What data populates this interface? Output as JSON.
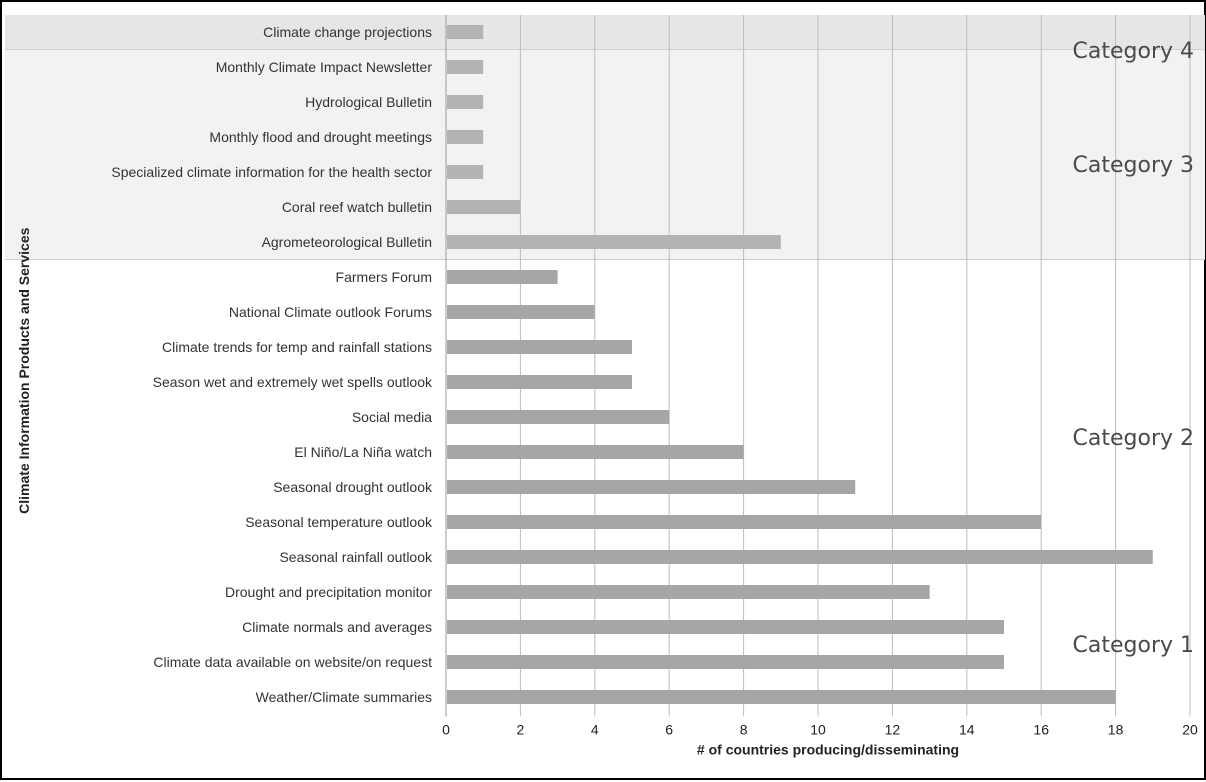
{
  "chart_data": {
    "type": "bar",
    "orientation": "horizontal",
    "title": "",
    "xlabel": "# of countries producing/disseminating",
    "ylabel": "Climate Information Products and Services",
    "xlim": [
      0,
      20
    ],
    "xticks": [
      0,
      2,
      4,
      6,
      8,
      10,
      12,
      14,
      16,
      18,
      20
    ],
    "grid": "vertical",
    "bar_color": "#a6a6a6",
    "bar_color_light": "#b3b3b3",
    "categories": [
      "Climate change projections",
      "Monthly Climate Impact Newsletter",
      "Hydrological Bulletin",
      "Monthly flood and drought meetings",
      "Specialized climate information for the health sector",
      "Coral reef watch bulletin",
      "Agrometeorological Bulletin",
      "Farmers Forum",
      "National Climate outlook Forums",
      "Climate trends for temp and rainfall stations",
      "Season wet and extremely wet spells outlook",
      "Social media",
      "El Niño/La Niña watch",
      "Seasonal drought outlook",
      "Seasonal temperature outlook",
      "Seasonal rainfall outlook",
      "Drought and precipitation monitor",
      "Climate normals and averages",
      "Climate data available on website/on request",
      "Weather/Climate summaries"
    ],
    "values": [
      1,
      1,
      1,
      1,
      1,
      2,
      9,
      3,
      4,
      5,
      5,
      6,
      8,
      11,
      16,
      19,
      13,
      15,
      15,
      18
    ],
    "groups": [
      {
        "label": "Category 4",
        "rows": [
          0,
          0
        ],
        "band_color": "#e6e6e6"
      },
      {
        "label": "Category 3",
        "rows": [
          1,
          6
        ],
        "band_color": "#f2f2f2"
      },
      {
        "label": "Category 2",
        "rows": [
          7,
          15
        ],
        "band_color": "#ffffff"
      },
      {
        "label": "Category 1",
        "rows": [
          16,
          19
        ],
        "band_color": "#ffffff"
      }
    ]
  }
}
